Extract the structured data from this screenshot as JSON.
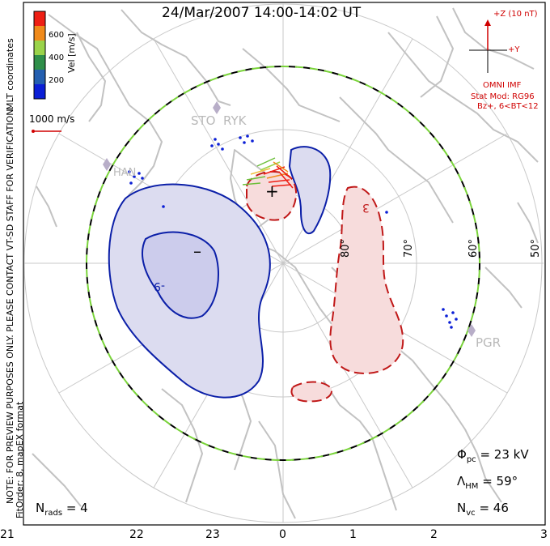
{
  "header": {
    "title": "24/Mar/2007 14:00-14:02 UT"
  },
  "imf_panel": {
    "z_label": "+Z (10 nT)",
    "y_label": "+Y",
    "source": "OMNI IMF",
    "model": "Stat Mod: RG96",
    "conditions": "Bz+, 6<BT<12",
    "color": "#d00000"
  },
  "velocity_scale": {
    "title": "Vel [m/s]",
    "ticks": [
      "600",
      "400",
      "200"
    ],
    "colors": [
      "#ee1f14",
      "#f08a1a",
      "#9ad34a",
      "#2f8f4a",
      "#245fb0",
      "#0b1fd6"
    ]
  },
  "coords_label": "MLT coordinates",
  "reference_vector": "1000 m/s",
  "notes": {
    "preview": "NOTE: FOR PREVIEW PURPOSES ONLY. PLEASE CONTACT VT-SD STAFF FOR VERIFICATION.",
    "fit": "FitOrder: 8,  mapEX format"
  },
  "stats": {
    "phi_symbol": "Φ",
    "phi_sub": "pc",
    "phi_value": "= 23 kV",
    "lambda_symbol": "Λ",
    "lambda_sub": "HM",
    "lambda_value": "= 59°",
    "nvc_symbol": "N",
    "nvc_sub": "vc",
    "nvc_value": "= 46",
    "nrads_symbol": "N",
    "nrads_sub": "rads",
    "nrads_value": "= 4"
  },
  "latitude_labels": [
    "80°",
    "70°",
    "60°",
    "50°"
  ],
  "mlt_axis": [
    "21",
    "22",
    "23",
    "0",
    "1",
    "2",
    "3"
  ],
  "station_labels": [
    "STO",
    "RYK",
    "HAN",
    "PGR"
  ],
  "potential_markers": {
    "minimum": "–",
    "maximum": "+",
    "contour_minus": "-9",
    "contour_plus": "3"
  },
  "colors": {
    "negative_fill": "#dcdcf0",
    "negative_line": "#0b1fa8",
    "positive_fill": "#f7dcdc",
    "positive_line": "#c01818",
    "grid": "#bdbdbd",
    "coast": "#c2c2c2",
    "boundary_green": "#7ad43a"
  }
}
